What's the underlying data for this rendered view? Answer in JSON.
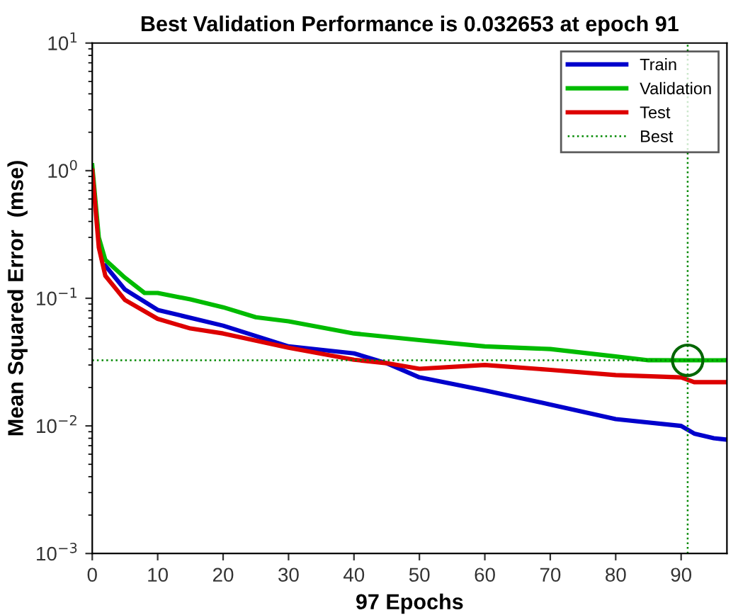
{
  "chart_data": {
    "type": "line",
    "title": "Best Validation Performance is 0.032653 at epoch 91",
    "xlabel": "97 Epochs",
    "ylabel": "Mean Squared Error  (mse)",
    "log": "y",
    "grid": false,
    "legend": "top right",
    "line_style": "solid",
    "marker": "none",
    "xlim": [
      0,
      97
    ],
    "xticks": [
      0,
      10,
      20,
      30,
      40,
      50,
      60,
      70,
      80,
      90
    ],
    "ylim": [
      0.001,
      10
    ],
    "yticks": [
      {
        "value": 0.001,
        "label": "10$^{−3}$"
      },
      {
        "value": 0.01,
        "label": "10$^{−2}$"
      },
      {
        "value": 0.1,
        "label": "10$^{−1}$"
      },
      {
        "value": 1,
        "label": "10$^{0}$"
      },
      {
        "value": 10,
        "label": "10$^{1}$"
      }
    ],
    "series": [
      {
        "name": "Train",
        "color": "#0000cc",
        "x": [
          2,
          5,
          10,
          20,
          30,
          40,
          45,
          50,
          60,
          70,
          80,
          90,
          92,
          95,
          97
        ],
        "values": [
          0.18,
          0.117,
          0.081,
          0.061,
          0.042,
          0.037,
          0.031,
          0.024,
          0.019,
          0.0147,
          0.0113,
          0.01,
          0.0087,
          0.008,
          0.0078
        ]
      },
      {
        "name": "Validation",
        "color": "#00bb00",
        "x": [
          0,
          1,
          2,
          5,
          8,
          10,
          15,
          20,
          25,
          30,
          40,
          50,
          60,
          70,
          80,
          85,
          91,
          97
        ],
        "values": [
          1.1,
          0.3,
          0.2,
          0.145,
          0.11,
          0.11,
          0.098,
          0.085,
          0.071,
          0.066,
          0.053,
          0.047,
          0.042,
          0.04,
          0.035,
          0.0327,
          0.032653,
          0.0327
        ]
      },
      {
        "name": "Test",
        "color": "#dd0000",
        "x": [
          0,
          1,
          2,
          5,
          10,
          15,
          20,
          30,
          40,
          45,
          50,
          60,
          70,
          80,
          90,
          92,
          97
        ],
        "values": [
          1.0,
          0.25,
          0.15,
          0.097,
          0.069,
          0.058,
          0.053,
          0.041,
          0.033,
          0.031,
          0.028,
          0.03,
          0.0275,
          0.025,
          0.024,
          0.022,
          0.022
        ]
      },
      {
        "type": "scatter",
        "color": "#006600",
        "marker": "circle",
        "x": [
          91
        ],
        "values": [
          0.032653
        ]
      }
    ],
    "ref_lines": [
      {
        "axis": "x",
        "value": 91,
        "label": "Best",
        "color": "#008800",
        "line_style": "dotted"
      },
      {
        "axis": "y",
        "value": 0.032653,
        "color": "#008800",
        "line_style": "dotted"
      }
    ]
  }
}
